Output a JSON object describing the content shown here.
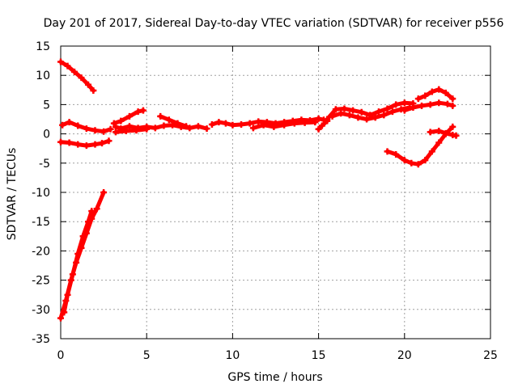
{
  "chart_data": {
    "type": "scatter",
    "title": "Day 201 of 2017, Sidereal Day-to-day VTEC variation (SDTVAR) for receiver p556",
    "xlabel": "GPS time / hours",
    "ylabel": "SDTVAR / TECUs",
    "xlim": [
      0,
      25
    ],
    "ylim": [
      -35,
      15
    ],
    "x_ticks": [
      0,
      5,
      10,
      15,
      20,
      25
    ],
    "y_ticks": [
      15,
      10,
      5,
      0,
      -5,
      -10,
      -15,
      -20,
      -25,
      -30,
      -35
    ],
    "x_tick_labels": [
      "0",
      "5",
      "10",
      "15",
      "20",
      "25"
    ],
    "y_tick_labels": [
      "15",
      "10",
      "5",
      "0",
      "-5",
      "-10",
      "-15",
      "-20",
      "-25",
      "-30",
      "-35"
    ],
    "grid": true,
    "marker_color": "#ff0000",
    "series": [
      {
        "points": [
          [
            0.0,
            12.3
          ],
          [
            0.4,
            11.6
          ],
          [
            0.8,
            10.6
          ],
          [
            1.2,
            9.6
          ],
          [
            1.6,
            8.4
          ],
          [
            1.9,
            7.4
          ]
        ]
      },
      {
        "points": [
          [
            0.1,
            1.5
          ],
          [
            0.5,
            2.0
          ],
          [
            1.0,
            1.4
          ],
          [
            1.5,
            0.9
          ],
          [
            2.0,
            0.6
          ],
          [
            2.5,
            0.4
          ],
          [
            2.9,
            0.8
          ]
        ]
      },
      {
        "points": [
          [
            0.0,
            -1.4
          ],
          [
            0.5,
            -1.5
          ],
          [
            1.0,
            -1.8
          ],
          [
            1.5,
            -2.0
          ],
          [
            2.0,
            -1.8
          ],
          [
            2.4,
            -1.6
          ],
          [
            2.8,
            -1.2
          ]
        ]
      },
      {
        "points": [
          [
            0.0,
            -31.5
          ],
          [
            0.3,
            -28.5
          ],
          [
            0.6,
            -25.0
          ],
          [
            0.9,
            -22.0
          ],
          [
            1.2,
            -19.5
          ],
          [
            1.5,
            -17.0
          ],
          [
            1.8,
            -14.5
          ],
          [
            2.1,
            -12.8
          ],
          [
            2.5,
            -10.0
          ]
        ]
      },
      {
        "points": [
          [
            0.2,
            -30.5
          ],
          [
            0.4,
            -27.5
          ],
          [
            0.7,
            -24.0
          ],
          [
            1.0,
            -20.5
          ],
          [
            1.3,
            -17.5
          ],
          [
            1.6,
            -15.0
          ],
          [
            1.8,
            -13.2
          ]
        ]
      },
      {
        "points": [
          [
            3.2,
            1.2
          ],
          [
            3.5,
            0.9
          ],
          [
            4.0,
            1.3
          ],
          [
            4.5,
            1.0
          ],
          [
            5.0,
            1.2
          ],
          [
            5.5,
            1.0
          ],
          [
            6.0,
            1.4
          ],
          [
            6.5,
            1.5
          ],
          [
            7.0,
            1.2
          ],
          [
            7.5,
            1.0
          ],
          [
            8.0,
            1.3
          ],
          [
            8.5,
            0.9
          ]
        ]
      },
      {
        "points": [
          [
            3.1,
            1.8
          ],
          [
            3.5,
            2.2
          ],
          [
            4.0,
            3.0
          ],
          [
            4.5,
            3.8
          ],
          [
            4.8,
            4.0
          ]
        ]
      },
      {
        "points": [
          [
            3.2,
            0.3
          ],
          [
            3.8,
            0.5
          ],
          [
            4.4,
            0.6
          ],
          [
            5.0,
            0.8
          ]
        ]
      },
      {
        "points": [
          [
            5.8,
            3.0
          ],
          [
            6.3,
            2.4
          ],
          [
            6.8,
            1.8
          ],
          [
            7.3,
            1.3
          ]
        ]
      },
      {
        "points": [
          [
            8.8,
            1.6
          ],
          [
            9.2,
            2.0
          ],
          [
            9.6,
            1.8
          ],
          [
            10.0,
            1.5
          ],
          [
            10.5,
            1.6
          ],
          [
            11.0,
            1.8
          ],
          [
            11.5,
            2.1
          ],
          [
            12.0,
            2.0
          ],
          [
            12.5,
            1.8
          ],
          [
            13.0,
            2.0
          ],
          [
            13.5,
            2.2
          ],
          [
            14.0,
            2.4
          ],
          [
            14.5,
            2.3
          ],
          [
            15.0,
            2.6
          ],
          [
            15.3,
            2.4
          ]
        ]
      },
      {
        "points": [
          [
            11.2,
            1.0
          ],
          [
            11.8,
            1.5
          ],
          [
            12.4,
            1.2
          ],
          [
            13.0,
            1.5
          ],
          [
            13.6,
            1.8
          ],
          [
            14.2,
            1.9
          ],
          [
            14.8,
            2.0
          ]
        ]
      },
      {
        "points": [
          [
            15.0,
            0.8
          ],
          [
            15.2,
            1.4
          ],
          [
            15.5,
            2.2
          ]
        ]
      },
      {
        "points": [
          [
            15.5,
            2.5
          ],
          [
            16.0,
            4.2
          ],
          [
            16.5,
            4.3
          ],
          [
            17.0,
            4.0
          ],
          [
            17.5,
            3.7
          ],
          [
            18.0,
            3.2
          ],
          [
            18.5,
            3.8
          ],
          [
            19.0,
            4.3
          ],
          [
            19.5,
            5.0
          ],
          [
            20.0,
            5.3
          ],
          [
            20.5,
            5.2
          ]
        ]
      },
      {
        "points": [
          [
            15.8,
            3.0
          ],
          [
            16.3,
            3.5
          ],
          [
            16.8,
            3.2
          ],
          [
            17.3,
            2.8
          ],
          [
            17.8,
            2.5
          ],
          [
            18.3,
            2.8
          ],
          [
            18.8,
            3.2
          ],
          [
            19.3,
            3.8
          ],
          [
            19.8,
            4.2
          ],
          [
            20.3,
            4.5
          ]
        ]
      },
      {
        "points": [
          [
            20.0,
            4.0
          ],
          [
            20.5,
            4.5
          ],
          [
            21.0,
            4.8
          ],
          [
            21.5,
            5.0
          ],
          [
            22.0,
            5.3
          ],
          [
            22.5,
            5.1
          ],
          [
            22.8,
            4.8
          ]
        ]
      },
      {
        "points": [
          [
            20.8,
            6.0
          ],
          [
            21.2,
            6.5
          ],
          [
            21.6,
            7.2
          ],
          [
            22.0,
            7.6
          ],
          [
            22.4,
            7.0
          ],
          [
            22.8,
            6.0
          ]
        ]
      },
      {
        "points": [
          [
            19.0,
            -3.0
          ],
          [
            19.5,
            -3.5
          ],
          [
            20.0,
            -4.5
          ],
          [
            20.4,
            -5.0
          ],
          [
            20.8,
            -5.2
          ],
          [
            21.2,
            -4.5
          ],
          [
            21.6,
            -3.0
          ],
          [
            22.0,
            -1.5
          ],
          [
            22.4,
            0.0
          ],
          [
            22.8,
            1.2
          ]
        ]
      },
      {
        "points": [
          [
            21.5,
            0.3
          ],
          [
            22.0,
            0.5
          ],
          [
            22.4,
            0.1
          ],
          [
            22.8,
            -0.2
          ],
          [
            23.0,
            -0.3
          ]
        ]
      }
    ]
  }
}
